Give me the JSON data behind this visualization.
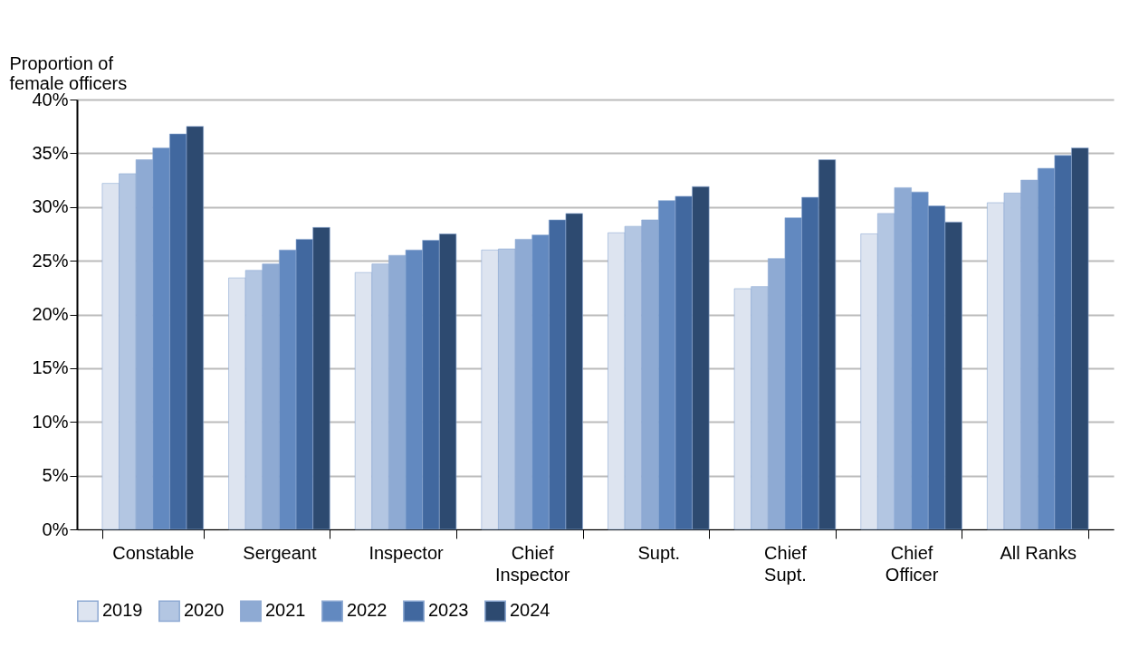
{
  "chart_data": {
    "type": "bar",
    "ylabel": "Proportion of\nfemale officers",
    "categories": [
      "Constable",
      "Sergeant",
      "Inspector",
      "Chief Inspector",
      "Supt.",
      "Chief Supt.",
      "Chief Officer",
      "All Ranks"
    ],
    "series": [
      {
        "name": "2019",
        "color": "#dde4f0",
        "values": [
          32.2,
          23.4,
          23.9,
          26.0,
          27.6,
          22.4,
          27.5,
          30.4
        ]
      },
      {
        "name": "2020",
        "color": "#b3c6e2",
        "values": [
          33.1,
          24.1,
          24.7,
          26.1,
          28.2,
          22.6,
          29.4,
          31.3
        ]
      },
      {
        "name": "2021",
        "color": "#8eaad3",
        "values": [
          34.4,
          24.7,
          25.5,
          27.0,
          28.8,
          25.2,
          31.8,
          32.5
        ]
      },
      {
        "name": "2022",
        "color": "#6289c0",
        "values": [
          35.5,
          26.0,
          26.0,
          27.4,
          30.6,
          29.0,
          31.4,
          33.6
        ]
      },
      {
        "name": "2023",
        "color": "#41689f",
        "values": [
          36.8,
          27.0,
          26.9,
          28.8,
          31.0,
          30.9,
          30.1,
          34.8
        ]
      },
      {
        "name": "2024",
        "color": "#2d4a70",
        "values": [
          37.5,
          28.1,
          27.5,
          29.4,
          31.9,
          34.4,
          28.6,
          35.5
        ]
      }
    ],
    "ylim": [
      0,
      40
    ],
    "yticks": [
      {
        "value": 0,
        "label": "0%"
      },
      {
        "value": 5,
        "label": "5%"
      },
      {
        "value": 10,
        "label": "10%"
      },
      {
        "value": 15,
        "label": "15%"
      },
      {
        "value": 20,
        "label": "20%"
      },
      {
        "value": 25,
        "label": "25%"
      },
      {
        "value": 30,
        "label": "30%"
      },
      {
        "value": 35,
        "label": "35%"
      },
      {
        "value": 40,
        "label": "40%"
      }
    ],
    "grid": "y",
    "legend": "bottom"
  }
}
